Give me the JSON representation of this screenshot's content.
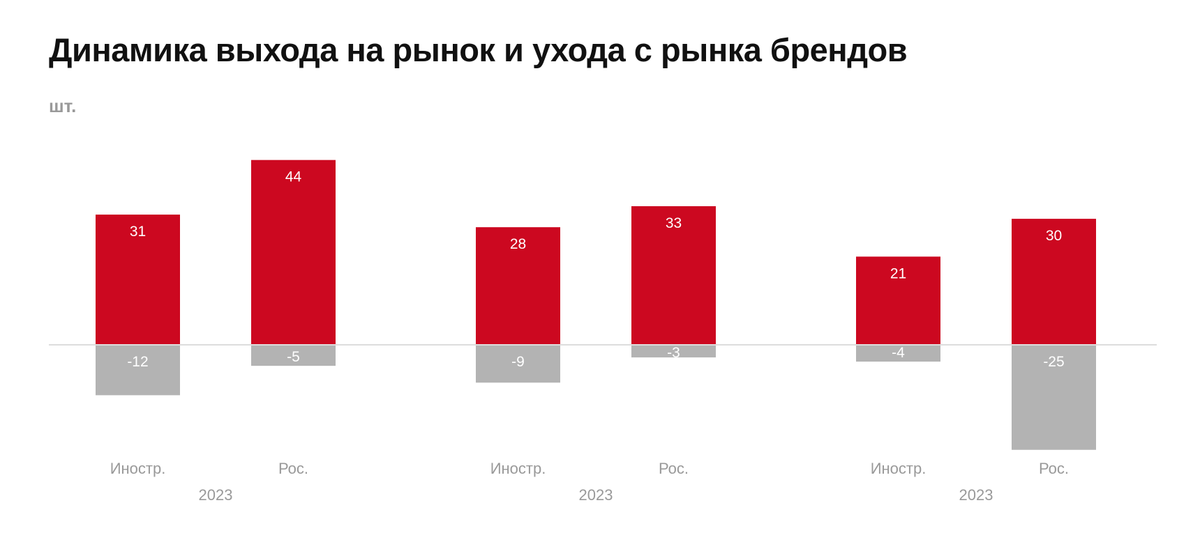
{
  "chart_data": {
    "type": "bar",
    "title": "Динамика выхода на рынок и ухода с рынка брендов",
    "unit_label": "шт.",
    "colors": {
      "positive": "#cc0820",
      "negative": "#b3b3b3",
      "axis": "#dddddd"
    },
    "groups": [
      {
        "year": "2023",
        "categories": [
          {
            "label": "Иностр.",
            "entered": 31,
            "left": -12
          },
          {
            "label": "Рос.",
            "entered": 44,
            "left": -5
          }
        ]
      },
      {
        "year": "2023",
        "categories": [
          {
            "label": "Иностр.",
            "entered": 28,
            "left": -9
          },
          {
            "label": "Рос.",
            "entered": 33,
            "left": -3
          }
        ]
      },
      {
        "year": "2023",
        "categories": [
          {
            "label": "Иностр.",
            "entered": 21,
            "left": -4
          },
          {
            "label": "Рос.",
            "entered": 30,
            "left": -25
          }
        ]
      }
    ],
    "ylim": [
      -25,
      44
    ]
  }
}
